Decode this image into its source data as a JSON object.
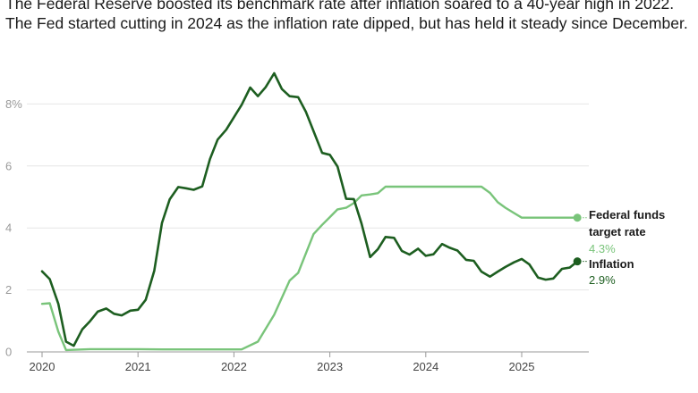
{
  "subtitle": "The Federal Reserve boosted its benchmark rate after inflation soared to a 40-year high in 2022. The Fed started cutting in 2024 as the inflation rate dipped, but has held it steady since December.",
  "colors": {
    "fed": "#79c47a",
    "inflation": "#1d5e20",
    "grid": "#e6e6e6",
    "axis": "#999999"
  },
  "chart_data": {
    "type": "line",
    "title": "",
    "xlabel": "",
    "ylabel": "",
    "xlim": [
      2020,
      2025.75
    ],
    "ylim": [
      0,
      9
    ],
    "x_ticks": [
      {
        "value": 2020,
        "label": "2020"
      },
      {
        "value": 2021,
        "label": "2021"
      },
      {
        "value": 2022,
        "label": "2022"
      },
      {
        "value": 2023,
        "label": "2023"
      },
      {
        "value": 2024,
        "label": "2024"
      },
      {
        "value": 2025,
        "label": "2025"
      }
    ],
    "y_ticks": [
      {
        "value": 0,
        "label": "0"
      },
      {
        "value": 2,
        "label": "2"
      },
      {
        "value": 4,
        "label": "4"
      },
      {
        "value": 6,
        "label": "6"
      },
      {
        "value": 8,
        "label": "8%"
      }
    ],
    "series": [
      {
        "key": "fed",
        "name_lines": [
          "Federal funds",
          "target rate"
        ],
        "value_label": "4.3%",
        "x": [
          2020.0,
          2020.08,
          2020.17,
          2020.25,
          2020.5,
          2020.75,
          2021.0,
          2021.25,
          2021.5,
          2021.75,
          2022.0,
          2022.08,
          2022.25,
          2022.42,
          2022.58,
          2022.67,
          2022.83,
          2022.92,
          2023.0,
          2023.08,
          2023.17,
          2023.25,
          2023.33,
          2023.42,
          2023.5,
          2023.58,
          2023.75,
          2024.0,
          2024.25,
          2024.5,
          2024.58,
          2024.67,
          2024.75,
          2024.83,
          2024.92,
          2025.0,
          2025.25,
          2025.5,
          2025.58
        ],
        "y": [
          1.55,
          1.57,
          0.65,
          0.06,
          0.09,
          0.09,
          0.09,
          0.08,
          0.08,
          0.08,
          0.08,
          0.08,
          0.33,
          1.2,
          2.3,
          2.55,
          3.8,
          4.1,
          4.35,
          4.6,
          4.65,
          4.8,
          5.05,
          5.08,
          5.12,
          5.33,
          5.33,
          5.33,
          5.33,
          5.33,
          5.33,
          5.13,
          4.83,
          4.65,
          4.48,
          4.33,
          4.33,
          4.33,
          4.33
        ],
        "last": 4.33
      },
      {
        "key": "inflation",
        "name_lines": [
          "Inflation"
        ],
        "value_label": "2.9%",
        "x": [
          2020.0,
          2020.08,
          2020.17,
          2020.25,
          2020.33,
          2020.42,
          2020.5,
          2020.58,
          2020.67,
          2020.75,
          2020.83,
          2020.92,
          2021.0,
          2021.08,
          2021.17,
          2021.25,
          2021.33,
          2021.42,
          2021.5,
          2021.58,
          2021.67,
          2021.75,
          2021.83,
          2021.92,
          2022.0,
          2022.08,
          2022.17,
          2022.25,
          2022.33,
          2022.42,
          2022.5,
          2022.58,
          2022.67,
          2022.75,
          2022.83,
          2022.92,
          2023.0,
          2023.08,
          2023.17,
          2023.25,
          2023.33,
          2023.42,
          2023.5,
          2023.58,
          2023.67,
          2023.75,
          2023.83,
          2023.92,
          2024.0,
          2024.08,
          2024.17,
          2024.25,
          2024.33,
          2024.42,
          2024.5,
          2024.58,
          2024.67,
          2024.75,
          2024.83,
          2024.92,
          2025.0,
          2025.08,
          2025.17,
          2025.25,
          2025.33,
          2025.42,
          2025.5,
          2025.58
        ],
        "y": [
          2.6,
          2.35,
          1.55,
          0.33,
          0.2,
          0.73,
          0.99,
          1.3,
          1.4,
          1.23,
          1.18,
          1.33,
          1.36,
          1.68,
          2.62,
          4.16,
          4.92,
          5.32,
          5.28,
          5.23,
          5.34,
          6.22,
          6.85,
          7.17,
          7.57,
          7.97,
          8.53,
          8.25,
          8.54,
          8.99,
          8.48,
          8.25,
          8.22,
          7.75,
          7.12,
          6.42,
          6.36,
          5.98,
          4.94,
          4.93,
          4.14,
          3.06,
          3.31,
          3.71,
          3.68,
          3.26,
          3.14,
          3.33,
          3.1,
          3.15,
          3.48,
          3.36,
          3.27,
          2.97,
          2.94,
          2.59,
          2.43,
          2.59,
          2.74,
          2.89,
          3.0,
          2.82,
          2.4,
          2.33,
          2.37,
          2.68,
          2.72,
          2.92
        ],
        "last": 2.92
      }
    ]
  }
}
